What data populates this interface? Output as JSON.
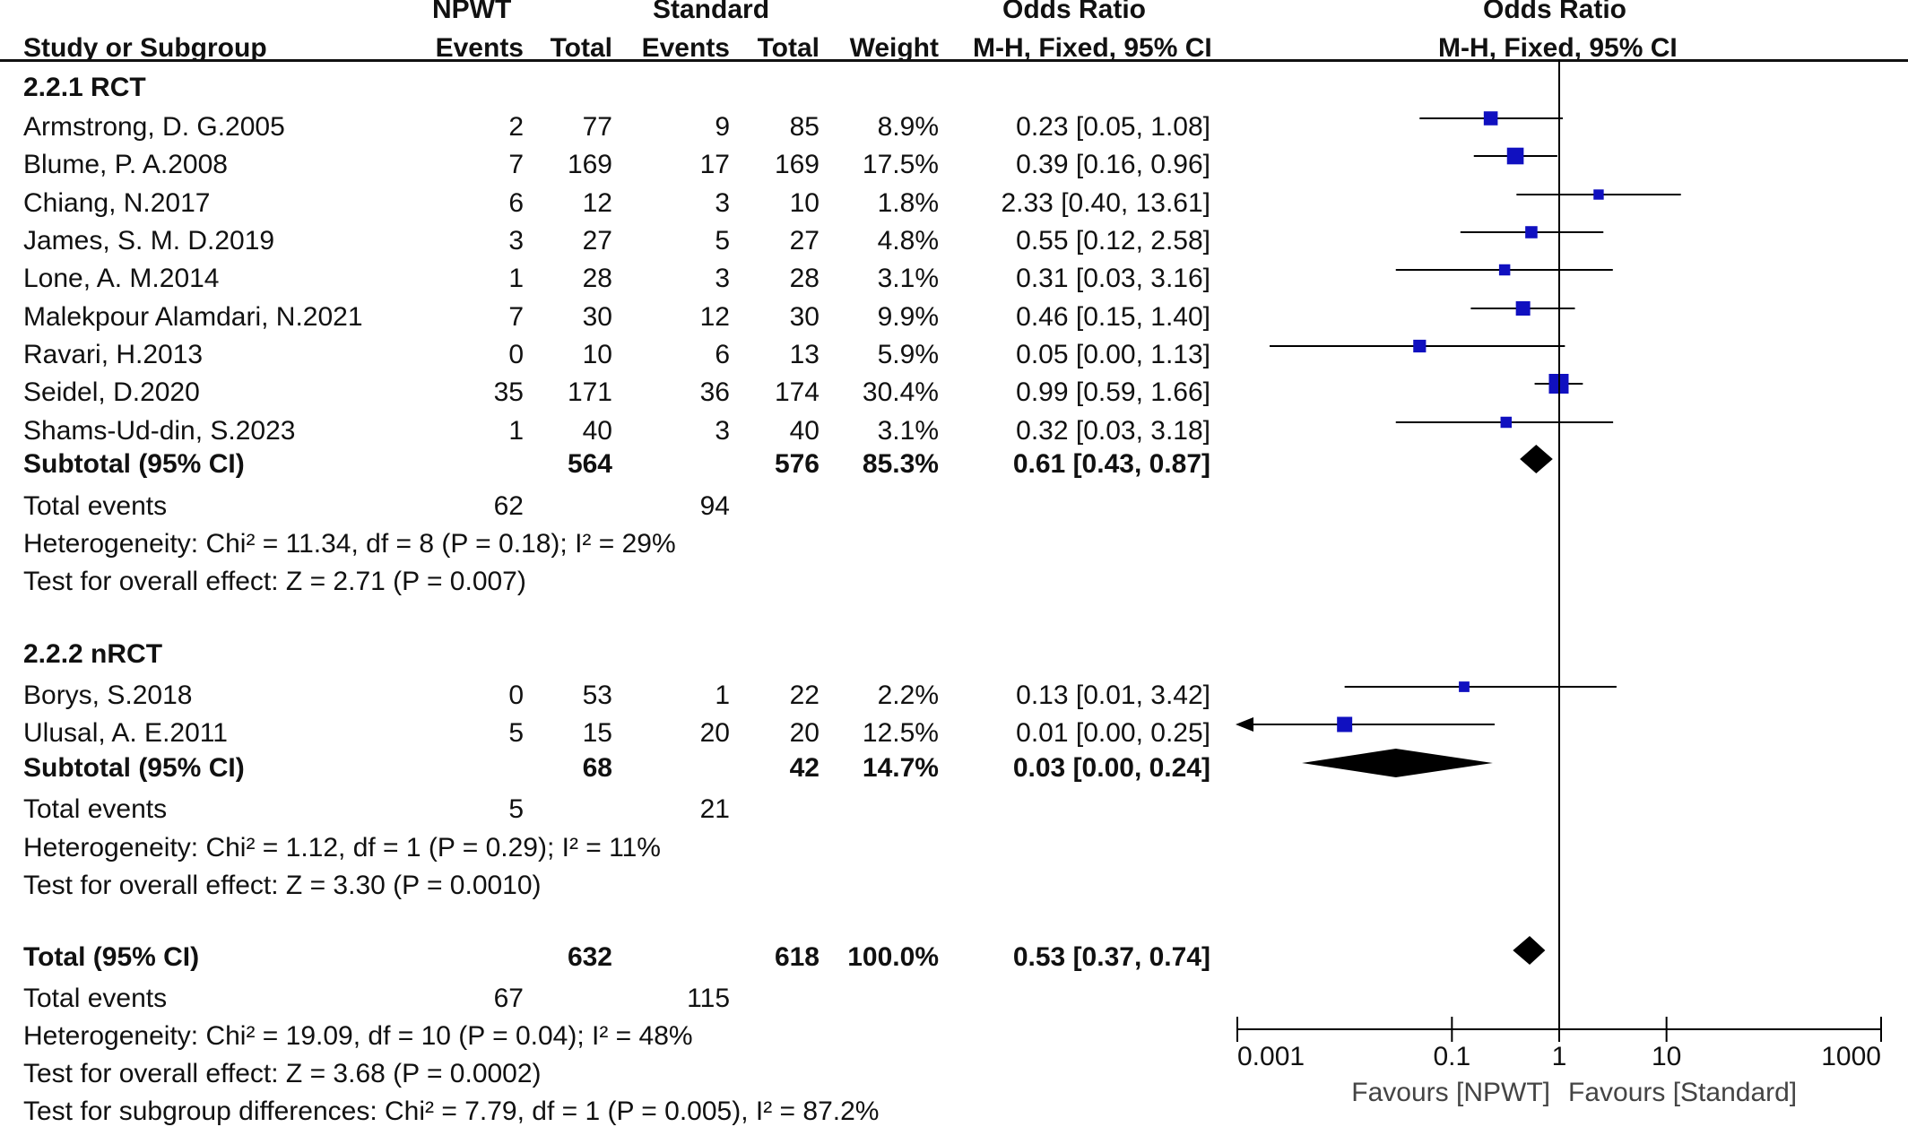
{
  "header": {
    "study_label": "Study or Subgroup",
    "group1": "NPWT",
    "group2": "Standard",
    "events_label": "Events",
    "total_label": "Total",
    "weight_label": "Weight",
    "or_title": "Odds Ratio",
    "or_method": "M-H, Fixed, 95% CI",
    "plot_title": "Odds Ratio",
    "plot_method": "M-H, Fixed, 95% CI"
  },
  "chart_data": {
    "type": "forest",
    "xscale": "log",
    "xlim": [
      0.001,
      1000
    ],
    "ticks": [
      {
        "value": 0.001,
        "label": "0.001"
      },
      {
        "value": 0.1,
        "label": "0.1"
      },
      {
        "value": 1,
        "label": "1"
      },
      {
        "value": 10,
        "label": "10"
      },
      {
        "value": 1000,
        "label": "1000"
      }
    ],
    "favours_left": "Favours [NPWT]",
    "favours_right": "Favours [Standard]",
    "subgroups": [
      {
        "title": "2.2.1 RCT",
        "studies": [
          {
            "name": "Armstrong, D. G.2005",
            "e1": "2",
            "t1": "77",
            "e2": "9",
            "t2": "85",
            "weight": "8.9%",
            "or_text": "0.23 [0.05, 1.08]",
            "or": 0.23,
            "lo": 0.05,
            "hi": 1.08,
            "w": 8.9
          },
          {
            "name": "Blume, P. A.2008",
            "e1": "7",
            "t1": "169",
            "e2": "17",
            "t2": "169",
            "weight": "17.5%",
            "or_text": "0.39 [0.16, 0.96]",
            "or": 0.39,
            "lo": 0.16,
            "hi": 0.96,
            "w": 17.5
          },
          {
            "name": "Chiang, N.2017",
            "e1": "6",
            "t1": "12",
            "e2": "3",
            "t2": "10",
            "weight": "1.8%",
            "or_text": "2.33 [0.40, 13.61]",
            "or": 2.33,
            "lo": 0.4,
            "hi": 13.61,
            "w": 1.8
          },
          {
            "name": "James, S. M. D.2019",
            "e1": "3",
            "t1": "27",
            "e2": "5",
            "t2": "27",
            "weight": "4.8%",
            "or_text": "0.55 [0.12, 2.58]",
            "or": 0.55,
            "lo": 0.12,
            "hi": 2.58,
            "w": 4.8
          },
          {
            "name": "Lone, A. M.2014",
            "e1": "1",
            "t1": "28",
            "e2": "3",
            "t2": "28",
            "weight": "3.1%",
            "or_text": "0.31 [0.03, 3.16]",
            "or": 0.31,
            "lo": 0.03,
            "hi": 3.16,
            "w": 3.1
          },
          {
            "name": "Malekpour Alamdari, N.2021",
            "e1": "7",
            "t1": "30",
            "e2": "12",
            "t2": "30",
            "weight": "9.9%",
            "or_text": "0.46 [0.15, 1.40]",
            "or": 0.46,
            "lo": 0.15,
            "hi": 1.4,
            "w": 9.9
          },
          {
            "name": "Ravari, H.2013",
            "e1": "0",
            "t1": "10",
            "e2": "6",
            "t2": "13",
            "weight": "5.9%",
            "or_text": "0.05 [0.00, 1.13]",
            "or": 0.05,
            "lo": 0.002,
            "hi": 1.13,
            "w": 5.9
          },
          {
            "name": "Seidel, D.2020",
            "e1": "35",
            "t1": "171",
            "e2": "36",
            "t2": "174",
            "weight": "30.4%",
            "or_text": "0.99 [0.59, 1.66]",
            "or": 0.99,
            "lo": 0.59,
            "hi": 1.66,
            "w": 30.4
          },
          {
            "name": "Shams-Ud-din, S.2023",
            "e1": "1",
            "t1": "40",
            "e2": "3",
            "t2": "40",
            "weight": "3.1%",
            "or_text": "0.32 [0.03, 3.18]",
            "or": 0.32,
            "lo": 0.03,
            "hi": 3.18,
            "w": 3.1
          }
        ],
        "subtotal": {
          "label": "Subtotal (95% CI)",
          "t1": "564",
          "t2": "576",
          "weight": "85.3%",
          "or_text": "0.61 [0.43, 0.87]",
          "or": 0.61,
          "lo": 0.43,
          "hi": 0.87
        },
        "total_events": {
          "label": "Total events",
          "e1": "62",
          "e2": "94"
        },
        "heterogeneity": "Heterogeneity: Chi² = 11.34, df = 8 (P = 0.18); I² = 29%",
        "overall": "Test for overall effect: Z = 2.71 (P = 0.007)"
      },
      {
        "title": "2.2.2 nRCT",
        "studies": [
          {
            "name": "Borys, S.2018",
            "e1": "0",
            "t1": "53",
            "e2": "1",
            "t2": "22",
            "weight": "2.2%",
            "or_text": "0.13 [0.01, 3.42]",
            "or": 0.13,
            "lo": 0.01,
            "hi": 3.42,
            "w": 2.2
          },
          {
            "name": "Ulusal, A. E.2011",
            "e1": "5",
            "t1": "15",
            "e2": "20",
            "t2": "20",
            "weight": "12.5%",
            "or_text": "0.01 [0.00, 0.25]",
            "or": 0.01,
            "lo": 0.0005,
            "hi": 0.25,
            "w": 12.5,
            "arrow_left": true
          }
        ],
        "subtotal": {
          "label": "Subtotal (95% CI)",
          "t1": "68",
          "t2": "42",
          "weight": "14.7%",
          "or_text": "0.03 [0.00, 0.24]",
          "or": 0.03,
          "lo": 0.004,
          "hi": 0.24
        },
        "total_events": {
          "label": "Total events",
          "e1": "5",
          "e2": "21"
        },
        "heterogeneity": "Heterogeneity: Chi² = 1.12, df = 1 (P = 0.29); I² = 11%",
        "overall": "Test for overall effect: Z = 3.30 (P = 0.0010)"
      }
    ],
    "total": {
      "label": "Total (95% CI)",
      "t1": "632",
      "t2": "618",
      "weight": "100.0%",
      "or_text": "0.53 [0.37, 0.74]",
      "or": 0.53,
      "lo": 0.37,
      "hi": 0.74
    },
    "total_events": {
      "label": "Total events",
      "e1": "67",
      "e2": "115"
    },
    "heterogeneity": "Heterogeneity: Chi² = 19.09, df = 10 (P = 0.04); I² = 48%",
    "overall": "Test for overall effect: Z = 3.68 (P = 0.0002)",
    "subgroup_diff": "Test for subgroup differences: Chi² = 7.79, df = 1 (P = 0.005), I² = 87.2%",
    "colors": {
      "square": "#1010c0",
      "diamond": "#000000",
      "line": "#000000"
    }
  }
}
